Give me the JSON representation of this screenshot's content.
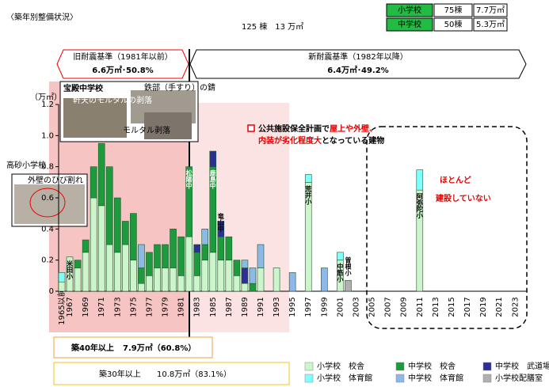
{
  "chart_data": {
    "type": "bar",
    "title": "〈築年別整備状況〉",
    "total": "125 棟　13 万㎡",
    "summary": [
      [
        "小学校",
        "75棟",
        "7.7万㎡"
      ],
      [
        "中学校",
        "50棟",
        "5.3万㎡"
      ]
    ],
    "old_standard": {
      "label": "旧耐震基準（1981年以前）",
      "value": "6.6万㎡･50.8%"
    },
    "new_standard": {
      "label": "新耐震基準（1982年以降）",
      "value": "6.4万㎡･49.2%"
    },
    "y_unit": "（万㎡）",
    "ylim": [
      0,
      1.2
    ],
    "yticks": [
      0,
      0.2,
      0.4,
      0.6,
      0.8,
      {
        "value": 1,
        "label": "1.0"
      },
      1.2
    ],
    "categories": [
      "1965以前",
      "1967",
      null,
      "1969",
      null,
      "1971",
      null,
      "1973",
      null,
      "1975",
      null,
      "1977",
      null,
      "1979",
      null,
      "1981",
      null,
      "1983",
      null,
      "1985",
      null,
      "1987",
      null,
      "1989",
      null,
      "1991",
      null,
      "1993",
      null,
      "1995",
      null,
      "1997",
      null,
      "1999",
      null,
      "2001",
      null,
      "2003",
      null,
      "2005",
      null,
      "2007",
      null,
      "2009",
      null,
      "2011",
      null,
      "2013",
      null,
      "2015",
      null,
      "2017",
      null,
      "2019",
      null,
      "2021",
      null,
      "2023",
      null
    ],
    "stacked": true,
    "series": [
      {
        "name": "小学校　校舎",
        "color": "#ccf5cc",
        "values": [
          0.06,
          0.22,
          0.15,
          0.25,
          0.6,
          0.55,
          0.3,
          0.25,
          0.3,
          0.2,
          0.05,
          0.1,
          0.15,
          0.15,
          0.15,
          0.1,
          0.35,
          0.1,
          0.2,
          0.25,
          0.2,
          0.2,
          0.1,
          0.05,
          0,
          0.15,
          0,
          0.15,
          0,
          0,
          0,
          0.7,
          0,
          0,
          0,
          0.2,
          0,
          0,
          0,
          0,
          0,
          0,
          0,
          0,
          0,
          0.65,
          0,
          0,
          0,
          0,
          0,
          0,
          0,
          0,
          0,
          0,
          0,
          0,
          0
        ]
      },
      {
        "name": "中学校　校舎",
        "color": "#1b9b3b",
        "values": [
          0,
          0,
          0.05,
          0.08,
          0.2,
          0.4,
          0.5,
          0.35,
          0.15,
          0.3,
          0.1,
          0.15,
          0.15,
          0.15,
          0.25,
          0.25,
          0.45,
          0.15,
          0.1,
          0.55,
          0.15,
          0.15,
          0.1,
          0,
          0.05,
          0,
          0,
          0,
          0,
          0,
          0,
          0,
          0,
          0,
          0,
          0,
          0,
          0,
          0,
          0,
          0,
          0,
          0,
          0,
          0,
          0,
          0,
          0,
          0,
          0,
          0,
          0,
          0,
          0,
          0,
          0,
          0,
          0,
          0
        ]
      },
      {
        "name": "中学校　武道場",
        "color": "#2e2e99",
        "values": [
          0,
          0,
          0,
          0,
          0,
          0,
          0,
          0,
          0,
          0,
          0,
          0,
          0,
          0,
          0,
          0,
          0,
          0.05,
          0,
          0.1,
          0.1,
          0,
          0,
          0.1,
          0,
          0,
          0,
          0,
          0,
          0,
          0,
          0,
          0,
          0,
          0,
          0,
          0,
          0,
          0,
          0,
          0,
          0,
          0,
          0,
          0,
          0,
          0,
          0,
          0,
          0,
          0,
          0,
          0,
          0,
          0,
          0,
          0,
          0,
          0
        ]
      },
      {
        "name": "小学校　体育館",
        "color": "#80ffff",
        "values": [
          0.06,
          0,
          0,
          0,
          0,
          0,
          0,
          0,
          0,
          0,
          0,
          0,
          0,
          0,
          0,
          0,
          0,
          0,
          0,
          0,
          0,
          0,
          0,
          0,
          0,
          0,
          0,
          0,
          0,
          0,
          0,
          0.05,
          0,
          0,
          0,
          0.05,
          0,
          0,
          0,
          0,
          0,
          0,
          0,
          0,
          0,
          0.13,
          0,
          0,
          0,
          0,
          0,
          0,
          0,
          0,
          0,
          0,
          0,
          0,
          0
        ]
      },
      {
        "name": "中学校　体育館",
        "color": "#8db8e8",
        "values": [
          0,
          0,
          0,
          0,
          0,
          0,
          0,
          0,
          0,
          0,
          0.15,
          0,
          0,
          0,
          0,
          0,
          0,
          0,
          0.1,
          0,
          0,
          0,
          0,
          0.05,
          0.1,
          0.15,
          0,
          0,
          0,
          0.12,
          0,
          0,
          0,
          0.15,
          0,
          0,
          0,
          0,
          0,
          0,
          0,
          0,
          0,
          0,
          0,
          0,
          0,
          0,
          0,
          0,
          0,
          0,
          0,
          0,
          0,
          0,
          0,
          0,
          0
        ]
      },
      {
        "name": "小学校配膳室",
        "color": "#b0b0b0",
        "values": [
          0,
          0,
          0,
          0,
          0,
          0,
          0,
          0,
          0,
          0,
          0,
          0,
          0,
          0,
          0,
          0,
          0,
          0,
          0,
          0,
          0,
          0,
          0,
          0,
          0,
          0,
          0,
          0,
          0,
          0,
          0,
          0,
          0,
          0,
          0,
          0,
          0.07,
          0,
          0,
          0,
          0,
          0,
          0,
          0,
          0,
          0,
          0,
          0,
          0,
          0,
          0,
          0,
          0,
          0,
          0,
          0,
          0,
          0,
          0
        ]
      }
    ],
    "segment_labels": [
      {
        "series": 0,
        "index": 1,
        "text": "米田小"
      },
      {
        "series": 0,
        "index": 31,
        "text": "荒井小"
      },
      {
        "series": 0,
        "index": 35,
        "text": "中筋小"
      },
      {
        "series": 5,
        "index": 36,
        "text": "曽根小"
      },
      {
        "series": 0,
        "index": 45,
        "text": "阿弥陀小"
      },
      {
        "series": 1,
        "index": 16,
        "text": "松陽中"
      },
      {
        "series": 1,
        "index": 19,
        "text": "鹿島中"
      },
      {
        "series": 1,
        "index": 20,
        "text": "竜山中"
      }
    ],
    "callouts": {
      "hodono": {
        "title": "宝殿中学校",
        "notes": [
          "軒天のモルタルの剥落",
          "鉄部（手すり）の錆",
          "モルタル剥落"
        ]
      },
      "takasago": {
        "title": "高砂小学校",
        "notes": [
          "外壁のひび割れ"
        ]
      }
    },
    "annotation": [
      [
        {
          "text": "公共施設保全計画で",
          "color": "#000000"
        },
        {
          "text": "屋上や外壁、",
          "color": "#e60000"
        }
      ],
      [
        {
          "text": "内装が劣化程度大",
          "color": "#e60000"
        },
        {
          "text": "となっている建物",
          "color": "#000000"
        }
      ]
    ],
    "note": [
      "ほとんど",
      "建設していない"
    ],
    "over40": {
      "label": "築40年以上",
      "value": "7.9万㎡（60.8%）"
    },
    "over30": {
      "label": "築30年以上",
      "value": "10.8万㎡（83.1%）"
    }
  }
}
